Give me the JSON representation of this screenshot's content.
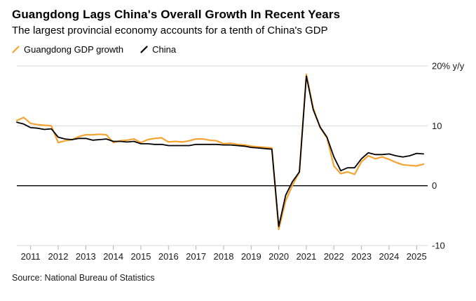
{
  "header": {
    "title": "Guangdong Lags China's Overall Growth In Recent Years",
    "subtitle": "The largest provincial economy accounts for a tenth of China's GDP"
  },
  "legend": [
    {
      "label": "Guangdong GDP growth",
      "color": "#f5a332"
    },
    {
      "label": "China",
      "color": "#000000"
    }
  ],
  "source": "Source: National Bureau of Statistics",
  "chart_data": {
    "type": "line",
    "title": "Guangdong Lags China's Overall Growth In Recent Years",
    "subtitle": "The largest provincial economy accounts for a tenth of China's GDP",
    "unit": "% y/y",
    "x_unit": "quarter",
    "x_start": 2010.5,
    "x_step": 0.25,
    "x_ticks": [
      2011,
      2012,
      2013,
      2014,
      2015,
      2016,
      2017,
      2018,
      2019,
      2020,
      2021,
      2022,
      2023,
      2024,
      2025
    ],
    "y_ticks": [
      {
        "value": 20,
        "label": "20% y/y"
      },
      {
        "value": 10,
        "label": "10"
      },
      {
        "value": 0,
        "label": "0"
      },
      {
        "value": -10,
        "label": "-10"
      }
    ],
    "ylim": [
      -10,
      20
    ],
    "grid": true,
    "legend_position": "top-left",
    "series": [
      {
        "name": "Guangdong GDP growth",
        "color": "#f5a332",
        "values": [
          10.9,
          11.4,
          10.4,
          10.2,
          10.1,
          10.0,
          7.2,
          7.5,
          7.7,
          8.2,
          8.5,
          8.5,
          8.6,
          8.5,
          7.2,
          7.5,
          7.6,
          7.8,
          7.2,
          7.7,
          7.9,
          8.0,
          7.3,
          7.4,
          7.3,
          7.5,
          7.8,
          7.8,
          7.6,
          7.5,
          7.0,
          7.1,
          6.9,
          6.8,
          6.6,
          6.5,
          6.4,
          6.3,
          -7.3,
          -2.5,
          0.1,
          2.3,
          18.6,
          13.0,
          9.7,
          8.0,
          3.3,
          2.0,
          2.3,
          1.9,
          4.0,
          5.0,
          4.5,
          4.8,
          4.4,
          3.9,
          3.5,
          3.4,
          3.3,
          3.6
        ]
      },
      {
        "name": "China",
        "color": "#000000",
        "values": [
          10.6,
          10.3,
          9.7,
          9.6,
          9.4,
          9.5,
          8.1,
          7.8,
          7.7,
          7.9,
          7.9,
          7.6,
          7.7,
          7.8,
          7.4,
          7.4,
          7.3,
          7.4,
          7.0,
          7.0,
          6.9,
          6.9,
          6.7,
          6.7,
          6.7,
          6.7,
          6.9,
          6.9,
          6.9,
          6.9,
          6.8,
          6.8,
          6.7,
          6.6,
          6.4,
          6.3,
          6.2,
          6.1,
          -6.8,
          -1.6,
          0.7,
          2.3,
          18.3,
          12.7,
          9.8,
          8.1,
          4.8,
          2.5,
          3.0,
          3.0,
          4.5,
          5.5,
          5.2,
          5.2,
          5.3,
          5.0,
          4.8,
          5.0,
          5.4,
          5.3
        ]
      }
    ]
  }
}
